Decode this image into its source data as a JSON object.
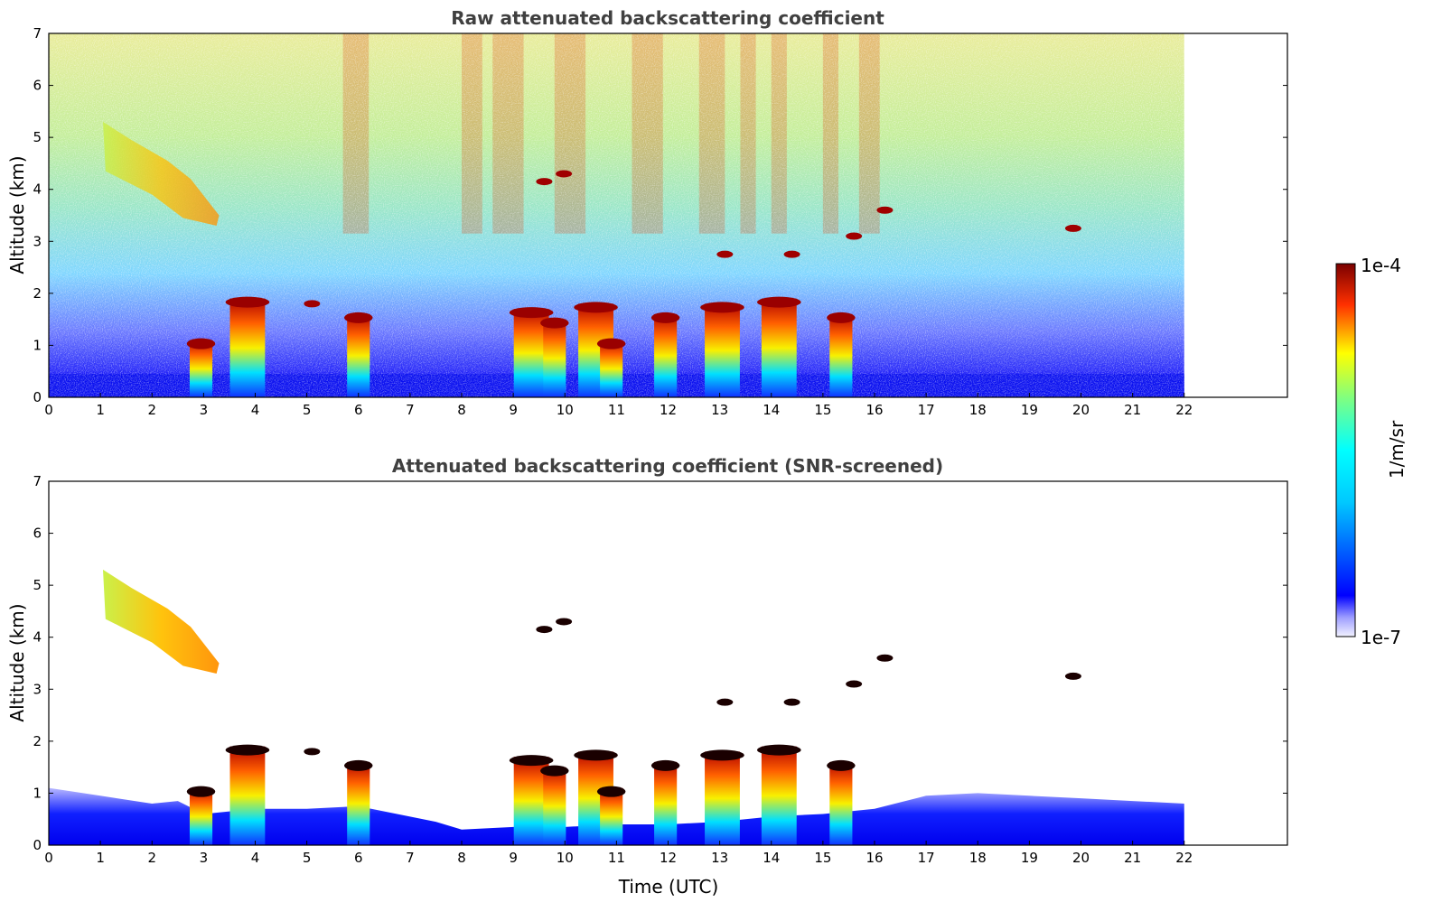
{
  "chart_data": [
    {
      "type": "heatmap",
      "title": "Raw attenuated backscattering coefficient",
      "xlabel": "",
      "ylabel": "Altitude (km)",
      "xlim": [
        0,
        24
      ],
      "ylim": [
        0,
        7
      ],
      "xticks": [
        0,
        1,
        2,
        3,
        4,
        5,
        6,
        7,
        8,
        9,
        10,
        11,
        12,
        13,
        14,
        15,
        16,
        17,
        18,
        19,
        20,
        21,
        22
      ],
      "yticks": [
        0,
        1,
        2,
        3,
        4,
        5,
        6,
        7
      ],
      "data_extent_x": [
        0,
        22
      ],
      "features": {
        "lofted_layer": {
          "x": [
            1.0,
            3.3
          ],
          "y": [
            3.3,
            5.3
          ]
        },
        "convective_columns": [
          {
            "x": 2.95,
            "top": 1.1
          },
          {
            "x": 3.85,
            "top": 1.9
          },
          {
            "x": 6.0,
            "top": 1.6
          },
          {
            "x": 9.35,
            "top": 1.7
          },
          {
            "x": 9.8,
            "top": 1.5
          },
          {
            "x": 10.6,
            "top": 1.8
          },
          {
            "x": 10.9,
            "top": 1.1
          },
          {
            "x": 11.95,
            "top": 1.6
          },
          {
            "x": 13.05,
            "top": 1.8
          },
          {
            "x": 14.15,
            "top": 1.9
          },
          {
            "x": 15.35,
            "top": 1.6
          }
        ],
        "elevated_cloud_patches": [
          {
            "x": 9.98,
            "y": 4.3
          },
          {
            "x": 9.6,
            "y": 4.15
          },
          {
            "x": 13.1,
            "y": 2.75
          },
          {
            "x": 14.4,
            "y": 2.75
          },
          {
            "x": 15.6,
            "y": 3.1
          },
          {
            "x": 16.2,
            "y": 3.6
          },
          {
            "x": 19.85,
            "y": 3.25
          },
          {
            "x": 5.1,
            "y": 1.8
          }
        ]
      }
    },
    {
      "type": "heatmap",
      "title": "Attenuated backscattering coefficient (SNR-screened)",
      "xlabel": "Time (UTC)",
      "ylabel": "Altitude (km)",
      "xlim": [
        0,
        24
      ],
      "ylim": [
        0,
        7
      ],
      "xticks": [
        0,
        1,
        2,
        3,
        4,
        5,
        6,
        7,
        8,
        9,
        10,
        11,
        12,
        13,
        14,
        15,
        16,
        17,
        18,
        19,
        20,
        21,
        22
      ],
      "yticks": [
        0,
        1,
        2,
        3,
        4,
        5,
        6,
        7
      ],
      "data_extent_x": [
        0,
        22
      ]
    }
  ],
  "colorbar": {
    "label": "1/m/sr",
    "max_label": "1e-4",
    "min_label": "1e-7",
    "scale": "log",
    "colormap": "jet"
  }
}
